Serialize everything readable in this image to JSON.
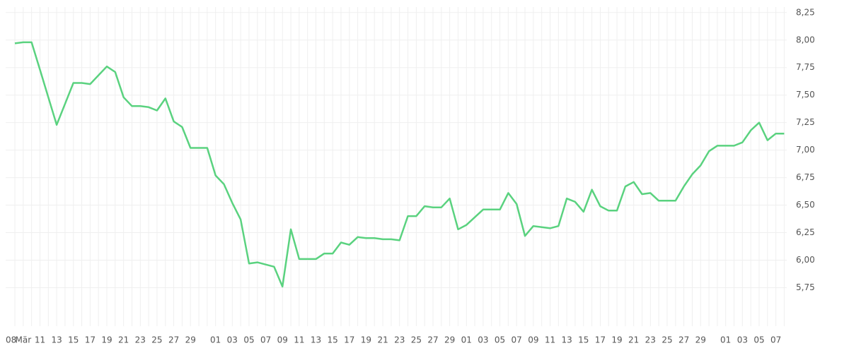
{
  "chart_data": {
    "type": "line",
    "color": "#5ad27f",
    "grid": true,
    "categories": [
      "08",
      "Mär",
      null,
      "11",
      null,
      "13",
      null,
      "15",
      null,
      "17",
      null,
      "19",
      null,
      "21",
      null,
      "23",
      null,
      "25",
      null,
      "27",
      null,
      "29",
      null,
      null,
      "01",
      null,
      "03",
      null,
      "05",
      null,
      "07",
      null,
      "09",
      null,
      "11",
      null,
      "13",
      null,
      "15",
      null,
      "17",
      null,
      "19",
      null,
      "21",
      null,
      "23",
      null,
      "25",
      null,
      "27",
      null,
      "29",
      null,
      "01",
      null,
      "03",
      null,
      "05",
      null,
      "07",
      null,
      "09",
      null,
      "11",
      null,
      "13",
      null,
      "15",
      null,
      "17",
      null,
      "19",
      null,
      "21",
      null,
      "23",
      null,
      "25",
      null,
      "27",
      null,
      "29",
      null,
      null,
      "01",
      null,
      "03",
      null,
      "05",
      null,
      "07",
      null
    ],
    "values": [
      7.97,
      7.98,
      7.98,
      7.73,
      7.48,
      7.23,
      7.42,
      7.61,
      7.61,
      7.6,
      7.68,
      7.76,
      7.71,
      7.48,
      7.4,
      7.4,
      7.39,
      7.36,
      7.47,
      7.26,
      7.21,
      7.02,
      7.02,
      7.02,
      6.77,
      6.69,
      6.52,
      6.37,
      5.97,
      5.98,
      5.96,
      5.94,
      5.76,
      6.28,
      6.01,
      6.01,
      6.01,
      6.06,
      6.06,
      6.16,
      6.14,
      6.21,
      6.2,
      6.2,
      6.19,
      6.19,
      6.18,
      6.4,
      6.4,
      6.49,
      6.48,
      6.48,
      6.56,
      6.28,
      6.32,
      6.39,
      6.46,
      6.46,
      6.46,
      6.61,
      6.51,
      6.22,
      6.31,
      6.3,
      6.29,
      6.31,
      6.56,
      6.53,
      6.44,
      6.64,
      6.49,
      6.45,
      6.45,
      6.67,
      6.71,
      6.6,
      6.61,
      6.54,
      6.54,
      6.54,
      6.67,
      6.78,
      6.86,
      6.99,
      7.04,
      7.04,
      7.04,
      7.07,
      7.18,
      7.25,
      7.09,
      7.15,
      7.15
    ],
    "ylim": [
      5.4,
      8.3
    ],
    "yticks": [
      {
        "value": 5.75,
        "label": "5,75"
      },
      {
        "value": 6,
        "label": "6,00"
      },
      {
        "value": 6.25,
        "label": "6,25"
      },
      {
        "value": 6.5,
        "label": "6,50"
      },
      {
        "value": 6.75,
        "label": "6,75"
      },
      {
        "value": 7,
        "label": "7,00"
      },
      {
        "value": 7.25,
        "label": "7,25"
      },
      {
        "value": 7.5,
        "label": "7,50"
      },
      {
        "value": 7.75,
        "label": "7,75"
      },
      {
        "value": 8,
        "label": "8,00"
      },
      {
        "value": 8.25,
        "label": "8,25"
      }
    ]
  }
}
